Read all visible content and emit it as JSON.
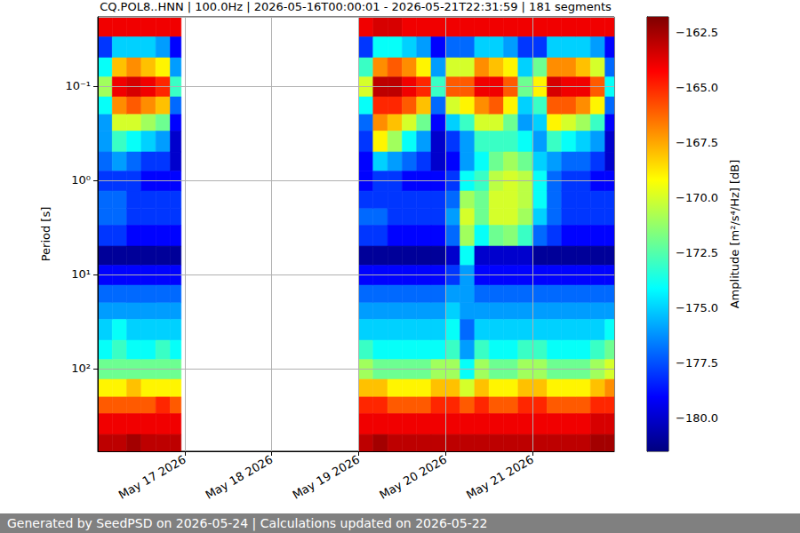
{
  "chart_data": {
    "type": "heatmap",
    "title": "CQ.POL8..HNN | 100.0Hz | 2026-05-16T00:00:01 - 2026-05-21T22:31:59 | 181 segments",
    "footer": "Generated by SeedPSD on 2026-05-24 | Calculations updated on 2026-05-22",
    "ylabel": "Period [s]",
    "log": "y",
    "grid": true,
    "xlim": [
      "2026-05-16T00:00:01",
      "2026-05-21T22:31:59"
    ],
    "xticks": [
      {
        "value": "2026-05-17",
        "label": "May 17 2026"
      },
      {
        "value": "2026-05-18",
        "label": "May 18 2026"
      },
      {
        "value": "2026-05-19",
        "label": "May 19 2026"
      },
      {
        "value": "2026-05-20",
        "label": "May 20 2026"
      },
      {
        "value": "2026-05-21",
        "label": "May 21 2026"
      }
    ],
    "ylim": [
      0.0184,
      754
    ],
    "yticks": [
      {
        "value": 0.1,
        "label": "10⁻¹"
      },
      {
        "value": 1,
        "label": "10⁰"
      },
      {
        "value": 10,
        "label": "10¹"
      },
      {
        "value": 100,
        "label": "10²"
      }
    ],
    "x_edges": [
      "2026-05-16T00:00:00",
      "2026-05-16T04:00:00",
      "2026-05-16T08:00:00",
      "2026-05-16T12:00:00",
      "2026-05-16T16:00:00",
      "2026-05-16T20:00:00",
      "2026-05-16T23:00:00",
      "2026-05-19T00:00:00",
      "2026-05-19T04:00:00",
      "2026-05-19T08:00:00",
      "2026-05-19T12:00:00",
      "2026-05-19T16:00:00",
      "2026-05-19T20:00:00",
      "2026-05-20T00:00:00",
      "2026-05-20T04:00:00",
      "2026-05-20T08:00:00",
      "2026-05-20T12:00:00",
      "2026-05-20T16:00:00",
      "2026-05-20T20:00:00",
      "2026-05-21T00:00:00",
      "2026-05-21T04:00:00",
      "2026-05-21T08:00:00",
      "2026-05-21T12:00:00",
      "2026-05-21T16:00:00",
      "2026-05-21T20:00:00",
      "2026-05-21T22:31:59"
    ],
    "y_edges": [
      0.0184,
      0.03,
      0.05,
      0.08,
      0.13,
      0.2,
      0.3,
      0.5,
      0.8,
      1.3,
      2,
      3,
      5,
      8,
      13,
      20,
      30,
      50,
      80,
      130,
      200,
      300,
      500,
      754
    ],
    "z": [
      [
        -164,
        -178,
        -174,
        -171,
        -174,
        -176,
        -176,
        -177,
        -178,
        -177,
        -177,
        -178,
        -181,
        -179,
        -177,
        -176,
        -175,
        -174,
        -172,
        -169,
        -166,
        -164,
        -163
      ],
      [
        -164,
        -175,
        -168,
        -164,
        -167,
        -170,
        -173,
        -176,
        -178,
        -177,
        -177,
        -178,
        -181,
        -179,
        -177,
        -176,
        -174,
        -173,
        -172,
        -169,
        -166,
        -164,
        -163
      ],
      [
        -164,
        -175,
        -167,
        -163.5,
        -166,
        -170,
        -174,
        -177,
        -178,
        -178,
        -178,
        -179,
        -181,
        -179,
        -177,
        -176,
        -175,
        -174,
        -172,
        -168,
        -166,
        -164,
        -162.5
      ],
      [
        -164,
        -175,
        -168,
        -164,
        -167,
        -171,
        -175,
        -178,
        -179,
        -178,
        -178,
        -179,
        -181,
        -179,
        -177,
        -176,
        -175,
        -174,
        -172,
        -169,
        -166,
        -164,
        -163
      ],
      [
        -164,
        -176,
        -169,
        -165,
        -168,
        -172,
        -176,
        -178,
        -179,
        -178,
        -178,
        -179,
        -181,
        -179,
        -177,
        -176,
        -175,
        -173,
        -172,
        -169,
        -165,
        -164,
        -163
      ],
      [
        -164,
        -179,
        -176,
        -173,
        -177,
        -179,
        -180,
        -180,
        -179,
        -178,
        -178,
        -179,
        -181,
        -179,
        -177,
        -176,
        -175,
        -174,
        -172,
        -169,
        -166,
        -164,
        -163
      ],
      [
        null,
        null,
        null,
        null,
        null,
        null,
        null,
        null,
        null,
        null,
        null,
        null,
        null,
        null,
        null,
        null,
        null,
        null,
        null,
        null,
        null,
        null,
        null
      ],
      [
        -164,
        -178,
        -173,
        -170,
        -174,
        -177,
        -178,
        -179,
        -179,
        -178,
        -177,
        -178,
        -181,
        -179,
        -177,
        -176,
        -175,
        -173,
        -171,
        -168,
        -165,
        -164,
        -163
      ],
      [
        -163.5,
        -174,
        -167,
        -163,
        -165,
        -167,
        -169,
        -175,
        -178,
        -178,
        -177,
        -178,
        -181,
        -179,
        -177,
        -176,
        -175,
        -174,
        -172,
        -168,
        -165,
        -164,
        -162.5
      ],
      [
        -163.5,
        -174,
        -166,
        -163,
        -165,
        -168,
        -171,
        -176,
        -178,
        -178,
        -178,
        -179,
        -181,
        -179,
        -177,
        -176,
        -175,
        -174,
        -172,
        -169,
        -166,
        -164,
        -163
      ],
      [
        -164,
        -175,
        -167,
        -164,
        -166,
        -170,
        -174,
        -177,
        -179,
        -178,
        -178,
        -179,
        -181,
        -179,
        -177,
        -176,
        -175,
        -174,
        -172,
        -169,
        -166,
        -164,
        -163
      ],
      [
        -164,
        -176,
        -169,
        -165,
        -168,
        -172,
        -176,
        -178,
        -179,
        -178,
        -178,
        -179,
        -181,
        -179,
        -177,
        -176,
        -175,
        -174,
        -172,
        -169,
        -166,
        -164,
        -163
      ],
      [
        -164,
        -179,
        -176,
        -173,
        -177,
        -179,
        -180,
        -180,
        -179,
        -178,
        -178,
        -179,
        -181,
        -179,
        -177,
        -176,
        -175,
        -174,
        -171,
        -168,
        -165,
        -164,
        -163
      ],
      [
        -164,
        -177,
        -170,
        -166,
        -170,
        -175,
        -178,
        -179,
        -178,
        -177,
        -176,
        -177,
        -180,
        -178,
        -176,
        -175,
        -174,
        -173,
        -171,
        -168,
        -165,
        -164,
        -163
      ],
      [
        -164,
        -177,
        -170,
        -166,
        -169,
        -173,
        -176,
        -176,
        -174,
        -171,
        -170,
        -171,
        -174,
        -176,
        -176,
        -176,
        -177,
        -176,
        -174,
        -170,
        -166,
        -164,
        -163
      ],
      [
        -164,
        -175,
        -167,
        -164,
        -167,
        -170,
        -173,
        -174,
        -173,
        -172,
        -172,
        -174,
        -180,
        -179,
        -177,
        -176,
        -175,
        -173,
        -171,
        -168,
        -165,
        -164,
        -163
      ],
      [
        -164,
        -175,
        -168,
        -164,
        -166,
        -170,
        -173,
        -172,
        -170.5,
        -170,
        -170,
        -172,
        -180,
        -179,
        -177,
        -176,
        -175,
        -174,
        -172,
        -169,
        -166,
        -164,
        -163
      ],
      [
        -164,
        -176,
        -169,
        -166,
        -169,
        -172,
        -173,
        -171,
        -170,
        -170,
        -170,
        -171.5,
        -180,
        -179,
        -177,
        -176,
        -175,
        -174,
        -172,
        -169,
        -166,
        -164,
        -163
      ],
      [
        -164,
        -178,
        -175,
        -172,
        -175,
        -176,
        -174,
        -172,
        -170.5,
        -170.5,
        -171,
        -173,
        -180,
        -179,
        -177,
        -176,
        -175,
        -173,
        -171,
        -168,
        -165,
        -164,
        -163
      ],
      [
        -164,
        -178,
        -172,
        -169,
        -173,
        -175,
        -176,
        -175,
        -174,
        -174,
        -175,
        -177,
        -181,
        -179,
        -177,
        -176,
        -175,
        -173,
        -171,
        -168,
        -165,
        -164,
        -163
      ],
      [
        -164,
        -175,
        -167,
        -163.5,
        -166,
        -169,
        -173,
        -176,
        -177,
        -177,
        -177,
        -178,
        -181,
        -179,
        -177,
        -176,
        -175,
        -174,
        -172,
        -169,
        -166,
        -164,
        -163
      ],
      [
        -164,
        -175,
        -167,
        -164,
        -166,
        -170,
        -174,
        -177,
        -178,
        -178,
        -178,
        -179,
        -181,
        -179,
        -177,
        -176,
        -175,
        -174,
        -172,
        -169,
        -166,
        -164,
        -163
      ],
      [
        -164,
        -175,
        -168,
        -164,
        -167,
        -171,
        -175,
        -177,
        -178,
        -178,
        -178,
        -179,
        -181,
        -179,
        -177,
        -176,
        -175,
        -174,
        -172,
        -169,
        -166,
        -164,
        -163
      ],
      [
        -164,
        -176,
        -170,
        -166,
        -169,
        -173,
        -176,
        -178,
        -179,
        -178,
        -178,
        -179,
        -181,
        -179,
        -177,
        -176,
        -175,
        -173,
        -171,
        -168,
        -165,
        -163.5,
        -162.5
      ],
      [
        -164,
        -179,
        -177,
        -174,
        -177,
        -179,
        -180,
        -180,
        -179,
        -178,
        -178,
        -179,
        -181,
        -179,
        -177,
        -176,
        -174,
        -172,
        -170,
        -167,
        -165,
        -163.5,
        -162.5
      ]
    ],
    "colorbar": {
      "label": "Amplitude [m²/s⁴/Hz] [dB]",
      "range": [
        -181.5,
        -161.8
      ],
      "ticks": [
        {
          "value": -180,
          "label": "−180.0"
        },
        {
          "value": -177.5,
          "label": "−177.5"
        },
        {
          "value": -175,
          "label": "−175.0"
        },
        {
          "value": -172.5,
          "label": "−172.5"
        },
        {
          "value": -170,
          "label": "−170.0"
        },
        {
          "value": -167.5,
          "label": "−167.5"
        },
        {
          "value": -165,
          "label": "−165.0"
        },
        {
          "value": -162.5,
          "label": "−162.5"
        }
      ]
    }
  }
}
